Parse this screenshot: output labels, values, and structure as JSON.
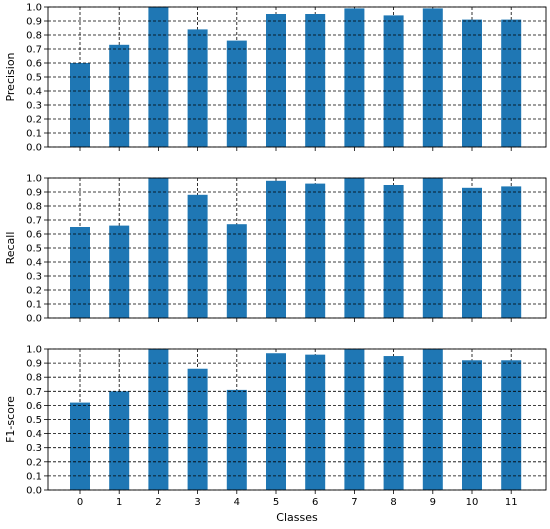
{
  "chart_data": [
    {
      "type": "bar",
      "ylabel": "Precision",
      "xlabel": "",
      "categories": [
        "0",
        "1",
        "2",
        "3",
        "4",
        "5",
        "6",
        "7",
        "8",
        "9",
        "10",
        "11"
      ],
      "values": [
        0.6,
        0.73,
        1.0,
        0.84,
        0.76,
        0.95,
        0.95,
        0.99,
        0.94,
        0.99,
        0.91,
        0.91
      ],
      "ylim": [
        0,
        1.0
      ],
      "yticks": [
        "0.0",
        "0.1",
        "0.2",
        "0.3",
        "0.4",
        "0.5",
        "0.6",
        "0.7",
        "0.8",
        "0.9",
        "1.0"
      ],
      "grid": true,
      "bar_color": "#1f77b4",
      "show_xticklabels": false
    },
    {
      "type": "bar",
      "ylabel": "Recall",
      "xlabel": "",
      "categories": [
        "0",
        "1",
        "2",
        "3",
        "4",
        "5",
        "6",
        "7",
        "8",
        "9",
        "10",
        "11"
      ],
      "values": [
        0.65,
        0.66,
        1.0,
        0.88,
        0.67,
        0.98,
        0.96,
        1.0,
        0.95,
        1.0,
        0.93,
        0.94
      ],
      "ylim": [
        0,
        1.0
      ],
      "yticks": [
        "0.0",
        "0.1",
        "0.2",
        "0.3",
        "0.4",
        "0.5",
        "0.6",
        "0.7",
        "0.8",
        "0.9",
        "1.0"
      ],
      "grid": true,
      "bar_color": "#1f77b4",
      "show_xticklabels": false
    },
    {
      "type": "bar",
      "ylabel": "F1-score",
      "xlabel": "Classes",
      "categories": [
        "0",
        "1",
        "2",
        "3",
        "4",
        "5",
        "6",
        "7",
        "8",
        "9",
        "10",
        "11"
      ],
      "values": [
        0.62,
        0.7,
        1.0,
        0.86,
        0.71,
        0.97,
        0.96,
        1.0,
        0.95,
        1.0,
        0.92,
        0.92
      ],
      "ylim": [
        0,
        1.0
      ],
      "yticks": [
        "0.0",
        "0.1",
        "0.2",
        "0.3",
        "0.4",
        "0.5",
        "0.6",
        "0.7",
        "0.8",
        "0.9",
        "1.0"
      ],
      "grid": true,
      "bar_color": "#1f77b4",
      "show_xticklabels": true
    }
  ]
}
